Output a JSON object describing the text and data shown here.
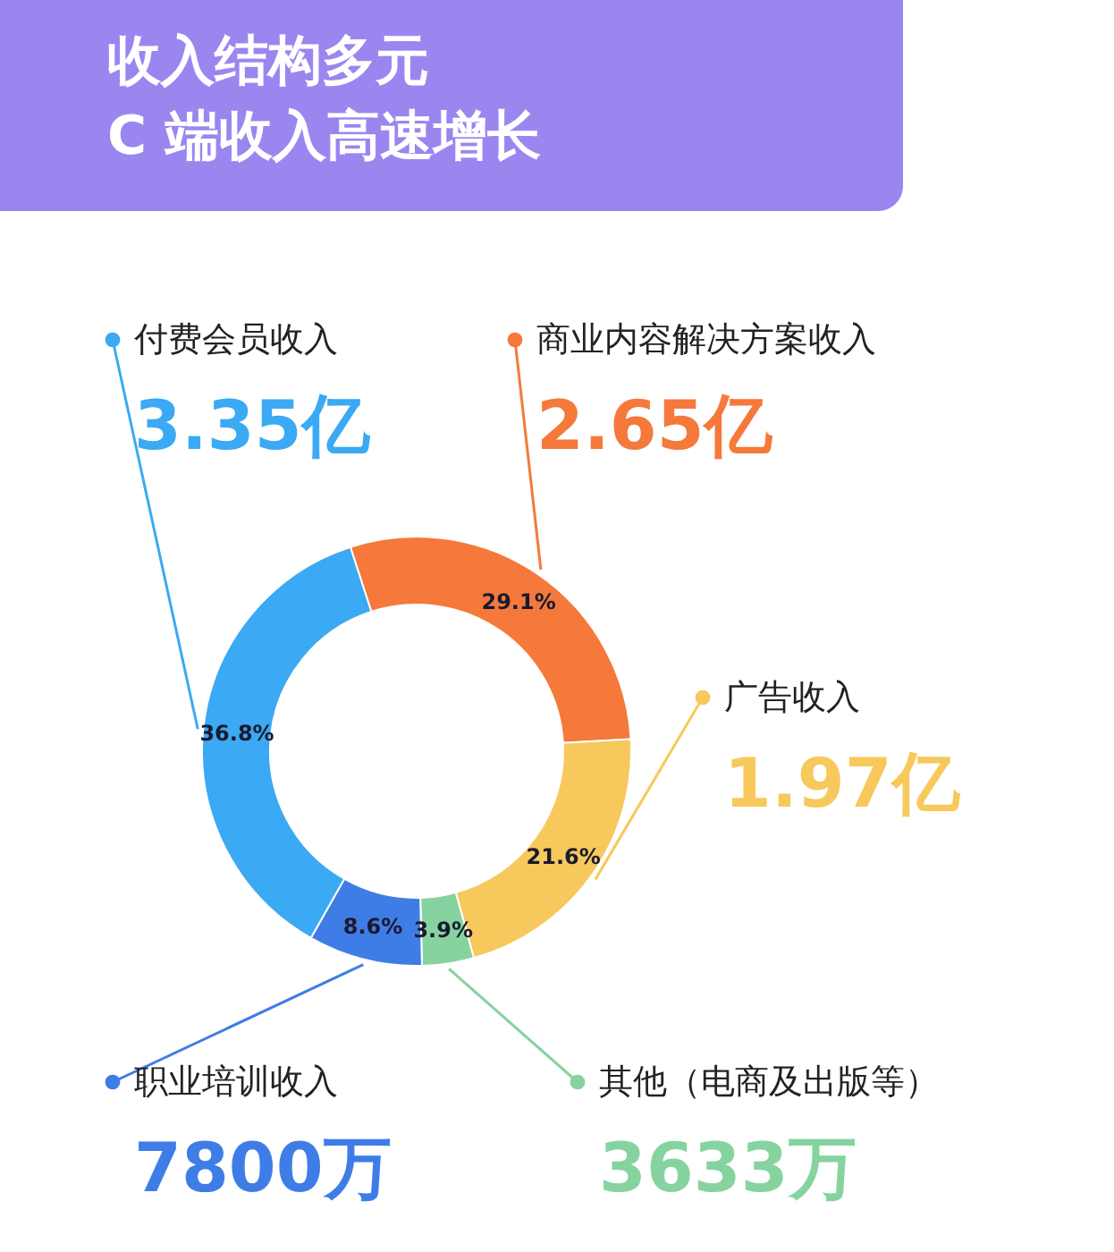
{
  "chart_data": {
    "type": "donut",
    "title": "收入结构多元\nC 端收入高速增长",
    "categories": [
      "商业内容解决方案收入",
      "广告收入",
      "其他（电商及出版等）",
      "职业培训收入",
      "付费会员收入"
    ],
    "values": [
      29.1,
      21.6,
      3.9,
      8.6,
      36.8
    ],
    "colors": [
      "#f5793b",
      "#f7c85c",
      "#86d3a0",
      "#3f7de6",
      "#3ba9f3"
    ],
    "value_labels": [
      "29.1%",
      "21.6%",
      "3.9%",
      "8.6%",
      "36.8%"
    ],
    "annotations": [
      "2.65亿",
      "1.97亿",
      "3633万",
      "7800万",
      "3.35亿"
    ],
    "legend": "top right"
  }
}
